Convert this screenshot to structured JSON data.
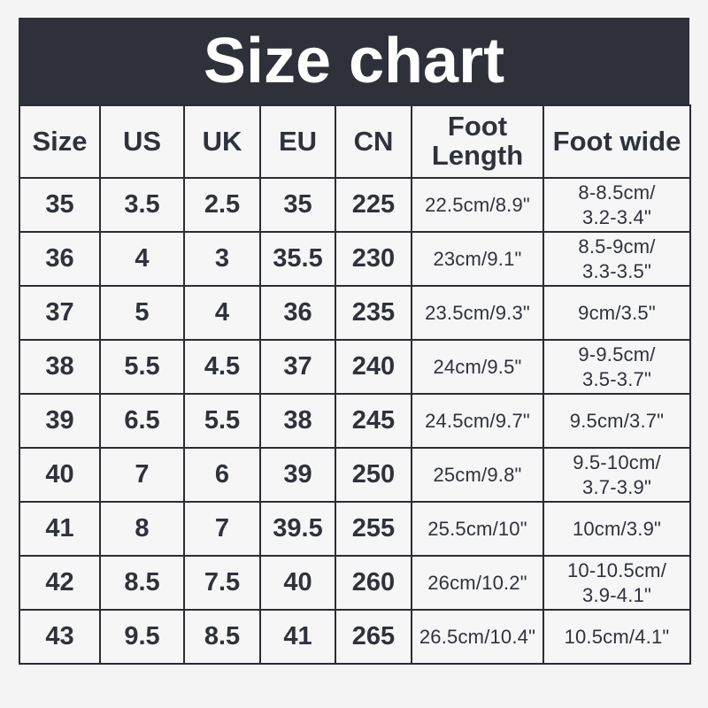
{
  "title": "Size chart",
  "colors": {
    "title_bar_bg": "#2e313a",
    "title_text": "#ffffff",
    "table_border": "#2b2d33",
    "cell_bg": "#f6f6f7",
    "page_bg": "#f4f4f5",
    "cell_text": "#2f323a"
  },
  "table": {
    "columns": [
      {
        "key": "size",
        "label": "Size"
      },
      {
        "key": "us",
        "label": "US"
      },
      {
        "key": "uk",
        "label": "UK"
      },
      {
        "key": "eu",
        "label": "EU"
      },
      {
        "key": "cn",
        "label": "CN"
      },
      {
        "key": "foot_length",
        "label": "Foot\nLength"
      },
      {
        "key": "foot_wide",
        "label": "Foot wide"
      }
    ],
    "rows": [
      [
        "35",
        "3.5",
        "2.5",
        "35",
        "225",
        "22.5cm/8.9\"",
        "8-8.5cm/\n3.2-3.4\""
      ],
      [
        "36",
        "4",
        "3",
        "35.5",
        "230",
        "23cm/9.1\"",
        "8.5-9cm/\n3.3-3.5\""
      ],
      [
        "37",
        "5",
        "4",
        "36",
        "235",
        "23.5cm/9.3\"",
        "9cm/3.5\""
      ],
      [
        "38",
        "5.5",
        "4.5",
        "37",
        "240",
        "24cm/9.5\"",
        "9-9.5cm/\n3.5-3.7\""
      ],
      [
        "39",
        "6.5",
        "5.5",
        "38",
        "245",
        "24.5cm/9.7\"",
        "9.5cm/3.7\""
      ],
      [
        "40",
        "7",
        "6",
        "39",
        "250",
        "25cm/9.8\"",
        "9.5-10cm/\n3.7-3.9\""
      ],
      [
        "41",
        "8",
        "7",
        "39.5",
        "255",
        "25.5cm/10\"",
        "10cm/3.9\""
      ],
      [
        "42",
        "8.5",
        "7.5",
        "40",
        "260",
        "26cm/10.2\"",
        "10-10.5cm/\n3.9-4.1\""
      ],
      [
        "43",
        "9.5",
        "8.5",
        "41",
        "265",
        "26.5cm/10.4\"",
        "10.5cm/4.1\""
      ]
    ]
  }
}
